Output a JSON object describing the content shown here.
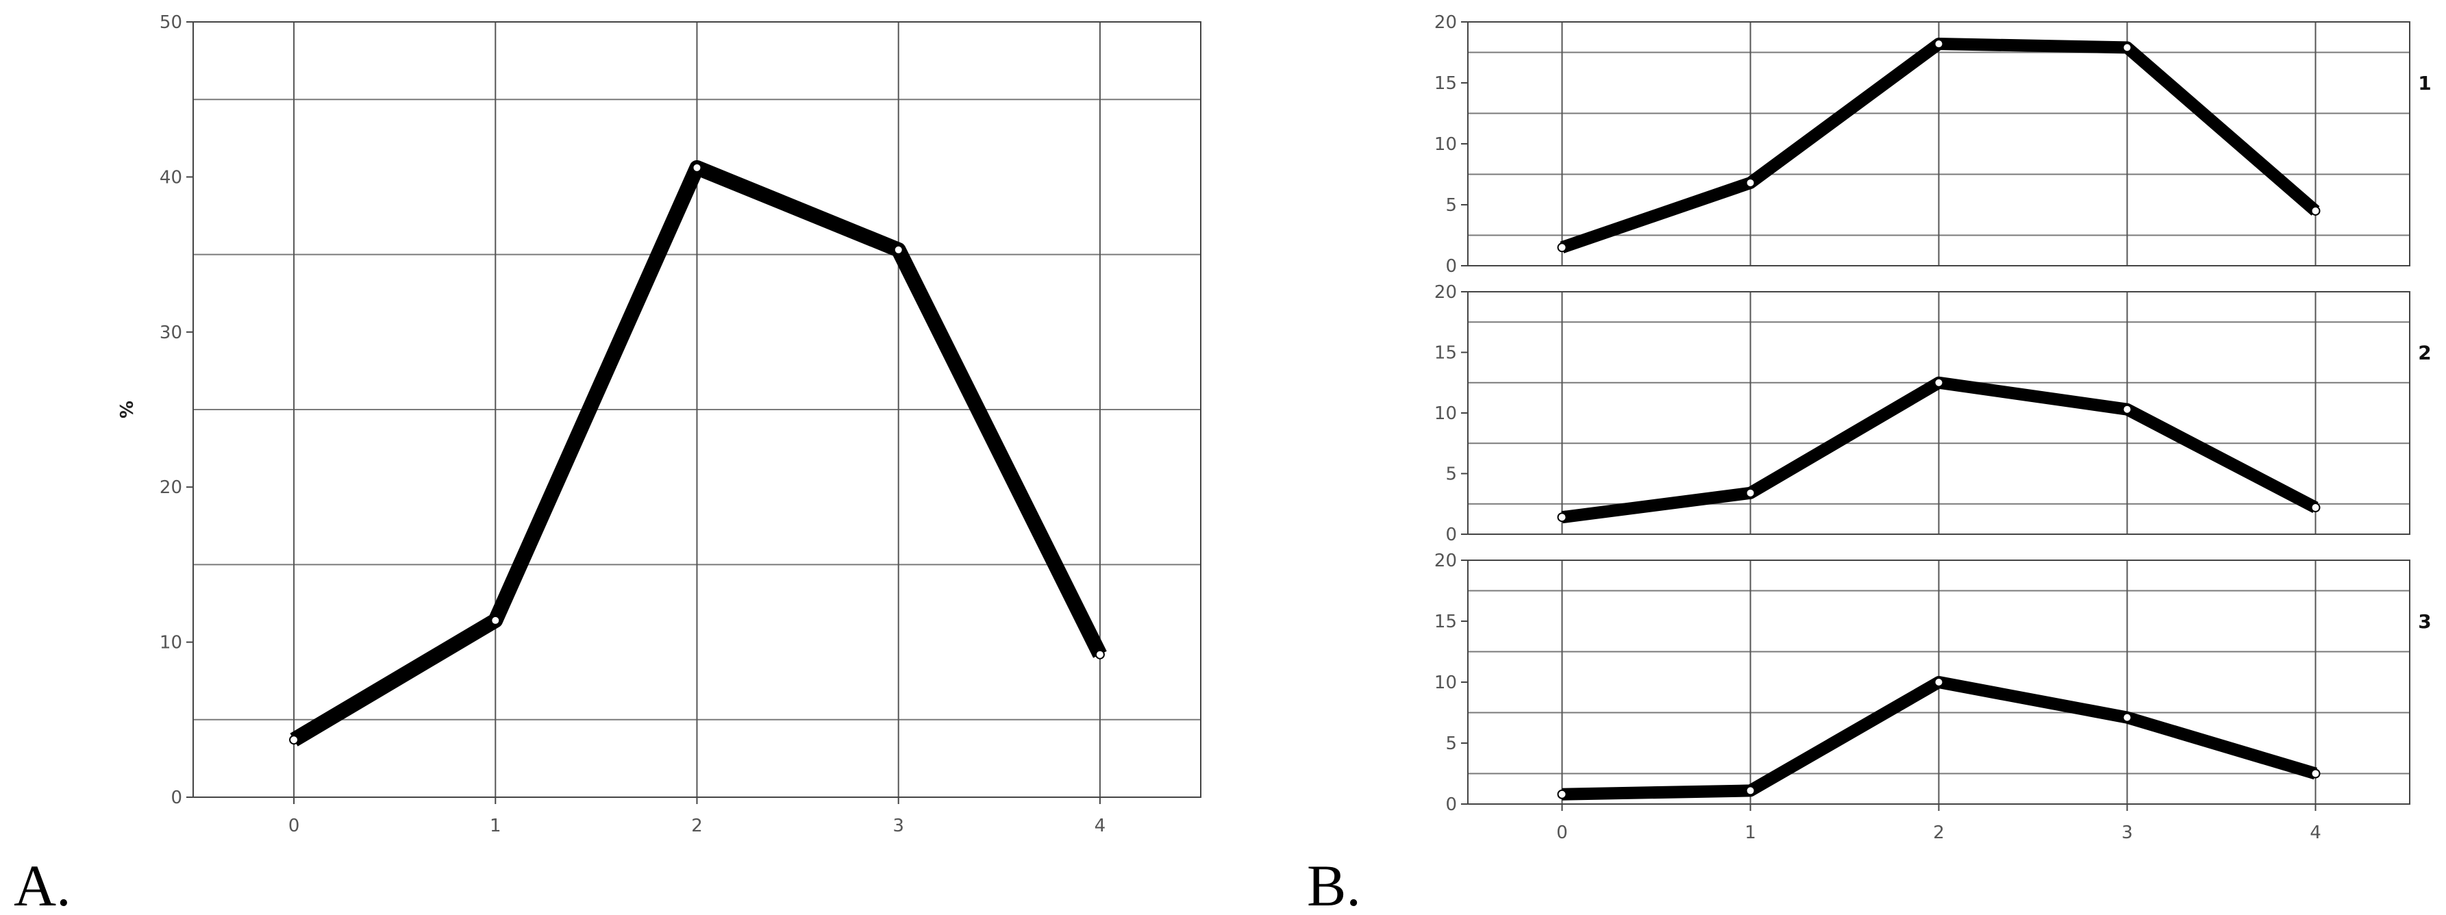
{
  "panels": [
    {
      "letter": "A."
    },
    {
      "letter": "B."
    }
  ],
  "chart_data": [
    {
      "type": "line",
      "panel": "A",
      "title": "",
      "xlabel": "",
      "ylabel": "%",
      "x": [
        0,
        1,
        2,
        3,
        4
      ],
      "series": [
        {
          "values": [
            3.7,
            11.4,
            40.6,
            35.3,
            9.2
          ]
        }
      ],
      "xlim": [
        -0.5,
        4.5
      ],
      "ylim": [
        0,
        50
      ],
      "yticks": [
        0,
        10,
        20,
        30,
        40,
        50
      ],
      "xticks": [
        0,
        1,
        2,
        3,
        4
      ],
      "grid": true,
      "gridlines_y": [
        5,
        15,
        25,
        35,
        45
      ],
      "line_color": "#000000"
    },
    {
      "type": "line",
      "panel": "B",
      "label": "1",
      "x": [
        0,
        1,
        2,
        3,
        4
      ],
      "series": [
        {
          "values": [
            1.5,
            6.8,
            18.2,
            17.9,
            4.5
          ]
        }
      ],
      "xlim": [
        -0.5,
        4.5
      ],
      "ylim": [
        0,
        20
      ],
      "yticks": [
        0,
        5,
        10,
        15,
        20
      ],
      "grid": true,
      "gridlines_y": [
        2.5,
        7.5,
        12.5,
        17.5
      ],
      "line_color": "#000000"
    },
    {
      "type": "line",
      "panel": "B",
      "label": "2",
      "x": [
        0,
        1,
        2,
        3,
        4
      ],
      "series": [
        {
          "values": [
            1.4,
            3.4,
            12.5,
            10.3,
            2.2
          ]
        }
      ],
      "xlim": [
        -0.5,
        4.5
      ],
      "ylim": [
        0,
        20
      ],
      "yticks": [
        0,
        5,
        10,
        15,
        20
      ],
      "grid": true,
      "gridlines_y": [
        2.5,
        7.5,
        12.5,
        17.5
      ],
      "line_color": "#000000"
    },
    {
      "type": "line",
      "panel": "B",
      "label": "3",
      "x": [
        0,
        1,
        2,
        3,
        4
      ],
      "series": [
        {
          "values": [
            0.8,
            1.1,
            10.0,
            7.1,
            2.5
          ]
        }
      ],
      "xlim": [
        -0.5,
        4.5
      ],
      "ylim": [
        0,
        20
      ],
      "yticks": [
        0,
        5,
        10,
        15,
        20
      ],
      "xticks": [
        0,
        1,
        2,
        3,
        4
      ],
      "grid": true,
      "gridlines_y": [
        2.5,
        7.5,
        12.5,
        17.5
      ],
      "line_color": "#000000"
    }
  ]
}
